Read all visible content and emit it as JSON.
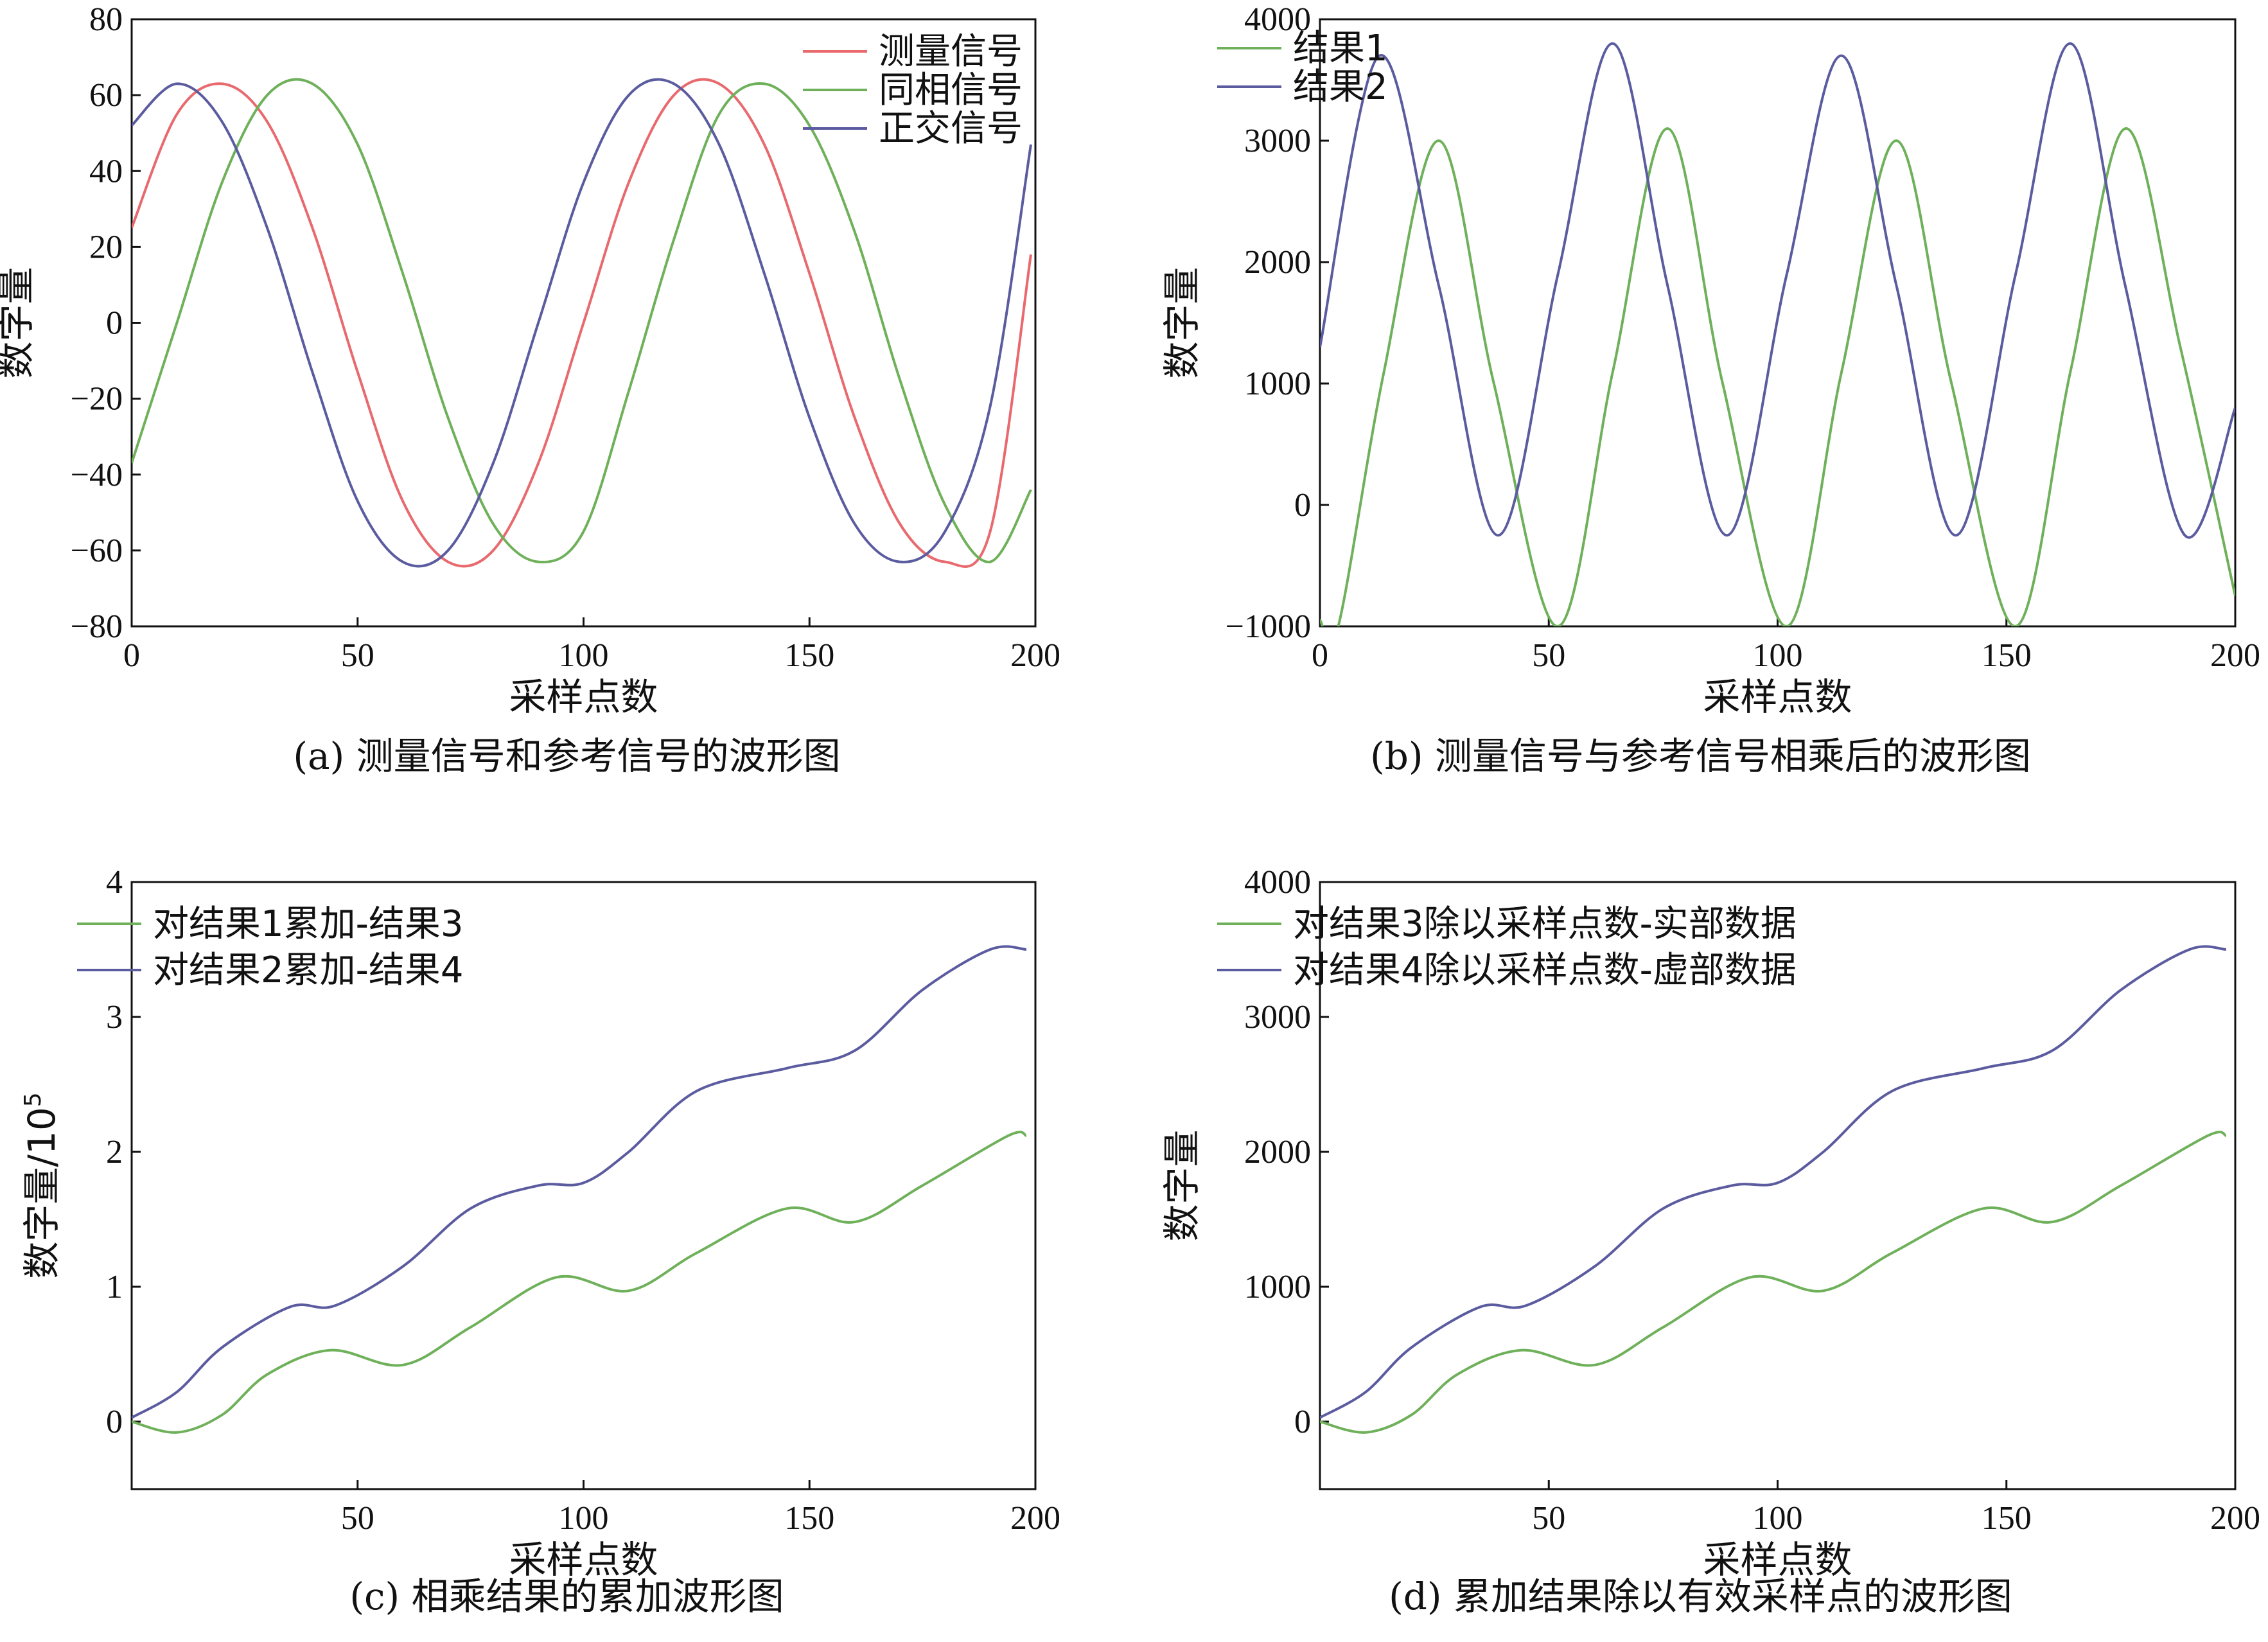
{
  "chart_data": [
    {
      "type": "line",
      "caption": "(a) 测量信号和参考信号的波形图",
      "xlabel": "采样点数",
      "ylabel": "数字量",
      "xlim": [
        0,
        200
      ],
      "ylim": [
        -80,
        80
      ],
      "xticks": [
        0,
        50,
        100,
        150,
        200
      ],
      "yticks": [
        -80,
        -60,
        -40,
        -20,
        0,
        20,
        40,
        60,
        80
      ],
      "xtick_labels": [
        "0",
        "50",
        "100",
        "150",
        "200"
      ],
      "ytick_labels": [
        "−80",
        "−60",
        "−40",
        "−20",
        "0",
        "20",
        "40",
        "60",
        "80"
      ],
      "legend_position": "top-right",
      "series": [
        {
          "name": "测量信号",
          "color": "#e8696e",
          "x": [
            0,
            10,
            20,
            30,
            40,
            50,
            60,
            70,
            80,
            90,
            100,
            110,
            120,
            130,
            140,
            150,
            160,
            170,
            180,
            190,
            199
          ],
          "y": [
            25,
            55,
            63,
            53,
            25,
            -13,
            -47,
            -63,
            -60,
            -37,
            0,
            37,
            60,
            63,
            47,
            13,
            -25,
            -53,
            -63,
            -55,
            18
          ]
        },
        {
          "name": "同相信号",
          "color": "#6fb05a",
          "x": [
            0,
            10,
            20,
            30,
            40,
            50,
            60,
            70,
            80,
            90,
            100,
            110,
            120,
            130,
            140,
            150,
            160,
            170,
            180,
            190,
            199
          ],
          "y": [
            -37,
            0,
            37,
            60,
            63,
            47,
            13,
            -25,
            -53,
            -63,
            -55,
            -18,
            22,
            55,
            63,
            52,
            24,
            -15,
            -48,
            -63,
            -44
          ]
        },
        {
          "name": "正交信号",
          "color": "#5b5ba0",
          "x": [
            0,
            10,
            20,
            30,
            40,
            50,
            60,
            70,
            80,
            90,
            100,
            110,
            120,
            130,
            140,
            150,
            160,
            170,
            180,
            190,
            199
          ],
          "y": [
            52,
            63,
            53,
            25,
            -13,
            -47,
            -63,
            -60,
            -37,
            0,
            37,
            60,
            63,
            47,
            13,
            -25,
            -53,
            -63,
            -55,
            -22,
            47
          ]
        }
      ]
    },
    {
      "type": "line",
      "caption": "(b) 测量信号与参考信号相乘后的波形图",
      "xlabel": "采样点数",
      "ylabel": "数字量",
      "xlim": [
        0,
        200
      ],
      "ylim": [
        -1000,
        4000
      ],
      "xticks": [
        0,
        50,
        100,
        150,
        200
      ],
      "yticks": [
        -1000,
        0,
        1000,
        2000,
        3000,
        4000
      ],
      "xtick_labels": [
        "0",
        "50",
        "100",
        "150",
        "200"
      ],
      "ytick_labels": [
        "−1000",
        "0",
        "1000",
        "2000",
        "3000",
        "4000"
      ],
      "legend_position": "top-left",
      "series": [
        {
          "name": "结果1",
          "color": "#6fb05a",
          "x": [
            0,
            4,
            14,
            26,
            38,
            52,
            64,
            76,
            88,
            102,
            114,
            126,
            138,
            152,
            164,
            176,
            188,
            200
          ],
          "y": [
            -950,
            -1000,
            1100,
            3000,
            1000,
            -1000,
            1100,
            3100,
            1000,
            -1000,
            1100,
            3000,
            1000,
            -1000,
            1100,
            3100,
            1300,
            -750
          ]
        },
        {
          "name": "结果2",
          "color": "#5b5ba0",
          "x": [
            0,
            13,
            26,
            39,
            52,
            64,
            76,
            89,
            102,
            114,
            126,
            139,
            152,
            164,
            176,
            189,
            200
          ],
          "y": [
            1300,
            3700,
            1800,
            -250,
            1900,
            3800,
            1800,
            -250,
            1900,
            3700,
            1800,
            -250,
            1900,
            3800,
            1800,
            -250,
            800
          ]
        }
      ]
    },
    {
      "type": "line",
      "caption": "(c) 相乘结果的累加波形图",
      "xlabel": "采样点数",
      "ylabel": "数字量/10",
      "ylabel_superscript": "5",
      "xlim": [
        0,
        200
      ],
      "ylim": [
        -0.5,
        4
      ],
      "xticks": [
        50,
        100,
        150,
        200
      ],
      "yticks": [
        0,
        1,
        2,
        3,
        4
      ],
      "xtick_labels": [
        "50",
        "100",
        "150",
        "200"
      ],
      "ytick_labels": [
        "0",
        "1",
        "2",
        "3",
        "4"
      ],
      "legend_position": "top-left",
      "series": [
        {
          "name": "对结果1累加-结果3",
          "color": "#6fb05a",
          "x": [
            0,
            10,
            20,
            30,
            44,
            60,
            75,
            94,
            110,
            125,
            145,
            160,
            175,
            194,
            198
          ],
          "y": [
            0,
            -0.08,
            0.05,
            0.35,
            0.53,
            0.42,
            0.7,
            1.07,
            0.97,
            1.25,
            1.58,
            1.48,
            1.75,
            2.12,
            2.12
          ]
        },
        {
          "name": "对结果2累加-结果4",
          "color": "#5b5ba0",
          "x": [
            0,
            10,
            20,
            35,
            45,
            60,
            75,
            90,
            100,
            110,
            125,
            145,
            160,
            175,
            190,
            198
          ],
          "y": [
            0.03,
            0.22,
            0.55,
            0.85,
            0.86,
            1.15,
            1.58,
            1.75,
            1.77,
            2.0,
            2.45,
            2.62,
            2.75,
            3.2,
            3.5,
            3.5
          ]
        }
      ]
    },
    {
      "type": "line",
      "caption": "(d) 累加结果除以有效采样点的波形图",
      "xlabel": "采样点数",
      "ylabel": "数字量",
      "xlim": [
        0,
        200
      ],
      "ylim": [
        -500,
        4000
      ],
      "xticks": [
        50,
        100,
        150,
        200
      ],
      "yticks": [
        0,
        1000,
        2000,
        3000,
        4000
      ],
      "xtick_labels": [
        "50",
        "100",
        "150",
        "200"
      ],
      "ytick_labels": [
        "0",
        "1000",
        "2000",
        "3000",
        "4000"
      ],
      "legend_position": "top-left",
      "series": [
        {
          "name": "对结果3除以采样点数-实部数据",
          "color": "#6fb05a",
          "x": [
            0,
            10,
            20,
            30,
            44,
            60,
            75,
            94,
            110,
            125,
            145,
            160,
            175,
            194,
            198
          ],
          "y": [
            0,
            -80,
            50,
            350,
            530,
            420,
            700,
            1070,
            970,
            1250,
            1580,
            1480,
            1750,
            2120,
            2120
          ]
        },
        {
          "name": "对结果4除以采样点数-虚部数据",
          "color": "#5b5ba0",
          "x": [
            0,
            10,
            20,
            35,
            45,
            60,
            75,
            90,
            100,
            110,
            125,
            145,
            160,
            175,
            190,
            198
          ],
          "y": [
            30,
            220,
            550,
            850,
            860,
            1150,
            1580,
            1750,
            1770,
            2000,
            2450,
            2620,
            2750,
            3200,
            3500,
            3500
          ]
        }
      ]
    }
  ]
}
